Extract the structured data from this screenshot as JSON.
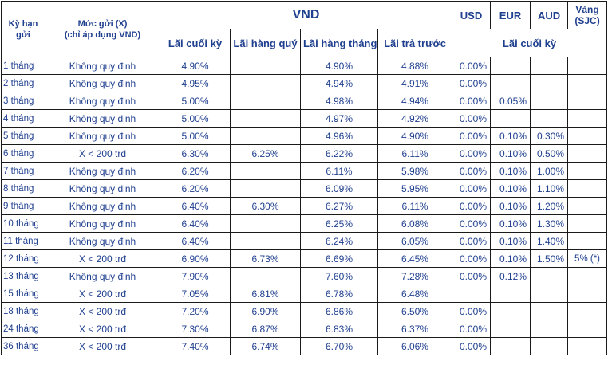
{
  "header": {
    "term": "Kỳ hạn gửi",
    "amount_line1": "Mức gửi (X)",
    "amount_line2": "(chỉ áp dụng VND)",
    "vnd": "VND",
    "usd": "USD",
    "eur": "EUR",
    "aud": "AUD",
    "gold_line1": "Vàng",
    "gold_line2": "(SJC)",
    "vnd_end": "Lãi cuối kỳ",
    "vnd_quarterly": "Lãi hàng quý",
    "vnd_monthly": "Lãi hàng tháng",
    "vnd_prepaid": "Lãi trả trước",
    "foreign_end": "Lãi cuối kỳ"
  },
  "rows": [
    {
      "term": "1 tháng",
      "amount": "Không quy định",
      "end": "4.90%",
      "quarterly": "",
      "monthly": "4.90%",
      "prepaid": "4.88%",
      "usd": "0.00%",
      "eur": "",
      "aud": "",
      "gold": ""
    },
    {
      "term": "2 tháng",
      "amount": "Không quy định",
      "end": "4.95%",
      "quarterly": "",
      "monthly": "4.94%",
      "prepaid": "4.91%",
      "usd": "0.00%",
      "eur": "",
      "aud": "",
      "gold": ""
    },
    {
      "term": "3 tháng",
      "amount": "Không quy định",
      "end": "5.00%",
      "quarterly": "",
      "monthly": "4.98%",
      "prepaid": "4.94%",
      "usd": "0.00%",
      "eur": "0.05%",
      "aud": "",
      "gold": ""
    },
    {
      "term": "4 tháng",
      "amount": "Không quy định",
      "end": "5.00%",
      "quarterly": "",
      "monthly": "4.97%",
      "prepaid": "4.92%",
      "usd": "0.00%",
      "eur": "",
      "aud": "",
      "gold": ""
    },
    {
      "term": "5 tháng",
      "amount": "Không quy định",
      "end": "5.00%",
      "quarterly": "",
      "monthly": "4.96%",
      "prepaid": "4.90%",
      "usd": "0.00%",
      "eur": "0.10%",
      "aud": "0.30%",
      "gold": ""
    },
    {
      "term": "6 tháng",
      "amount": "X < 200 trđ",
      "end": "6.30%",
      "quarterly": "6.25%",
      "monthly": "6.22%",
      "prepaid": "6.11%",
      "usd": "0.00%",
      "eur": "0.10%",
      "aud": "0.50%",
      "gold": ""
    },
    {
      "term": "7 tháng",
      "amount": "Không quy định",
      "end": "6.20%",
      "quarterly": "",
      "monthly": "6.11%",
      "prepaid": "5.98%",
      "usd": "0.00%",
      "eur": "0.10%",
      "aud": "1.00%",
      "gold": ""
    },
    {
      "term": "8 tháng",
      "amount": "Không quy định",
      "end": "6.20%",
      "quarterly": "",
      "monthly": "6.09%",
      "prepaid": "5.95%",
      "usd": "0.00%",
      "eur": "0.10%",
      "aud": "1.10%",
      "gold": ""
    },
    {
      "term": "9 tháng",
      "amount": "Không quy định",
      "end": "6.40%",
      "quarterly": "6.30%",
      "monthly": "6.27%",
      "prepaid": "6.11%",
      "usd": "0.00%",
      "eur": "0.10%",
      "aud": "1.20%",
      "gold": ""
    },
    {
      "term": "10 tháng",
      "amount": "Không quy định",
      "end": "6.40%",
      "quarterly": "",
      "monthly": "6.25%",
      "prepaid": "6.08%",
      "usd": "0.00%",
      "eur": "0.10%",
      "aud": "1.30%",
      "gold": ""
    },
    {
      "term": "11 tháng",
      "amount": "Không quy định",
      "end": "6.40%",
      "quarterly": "",
      "monthly": "6.24%",
      "prepaid": "6.05%",
      "usd": "0.00%",
      "eur": "0.10%",
      "aud": "1.40%",
      "gold": ""
    },
    {
      "term": "12 tháng",
      "amount": "X < 200 trđ",
      "end": "6.90%",
      "quarterly": "6.73%",
      "monthly": "6.69%",
      "prepaid": "6.45%",
      "usd": "0.00%",
      "eur": "0.10%",
      "aud": "1.50%",
      "gold": "5% (*)"
    },
    {
      "term": "13 tháng",
      "amount": "Không quy định",
      "end": "7.90%",
      "quarterly": "",
      "monthly": "7.60%",
      "prepaid": "7.28%",
      "usd": "0.00%",
      "eur": "0.12%",
      "aud": "",
      "gold": ""
    },
    {
      "term": "15 tháng",
      "amount": "X < 200 trđ",
      "end": "7.05%",
      "quarterly": "6.81%",
      "monthly": "6.78%",
      "prepaid": "6.48%",
      "usd": "",
      "eur": "",
      "aud": "",
      "gold": ""
    },
    {
      "term": "18 tháng",
      "amount": "X < 200 trđ",
      "end": "7.20%",
      "quarterly": "6.90%",
      "monthly": "6.86%",
      "prepaid": "6.50%",
      "usd": "0.00%",
      "eur": "",
      "aud": "",
      "gold": ""
    },
    {
      "term": "24 tháng",
      "amount": "X < 200 trđ",
      "end": "7.30%",
      "quarterly": "6.87%",
      "monthly": "6.83%",
      "prepaid": "6.37%",
      "usd": "0.00%",
      "eur": "",
      "aud": "",
      "gold": ""
    },
    {
      "term": "36  tháng",
      "amount": "X < 200 trđ",
      "end": "7.40%",
      "quarterly": "6.74%",
      "monthly": "6.70%",
      "prepaid": "6.06%",
      "usd": "0.00%",
      "eur": "",
      "aud": "",
      "gold": ""
    }
  ]
}
